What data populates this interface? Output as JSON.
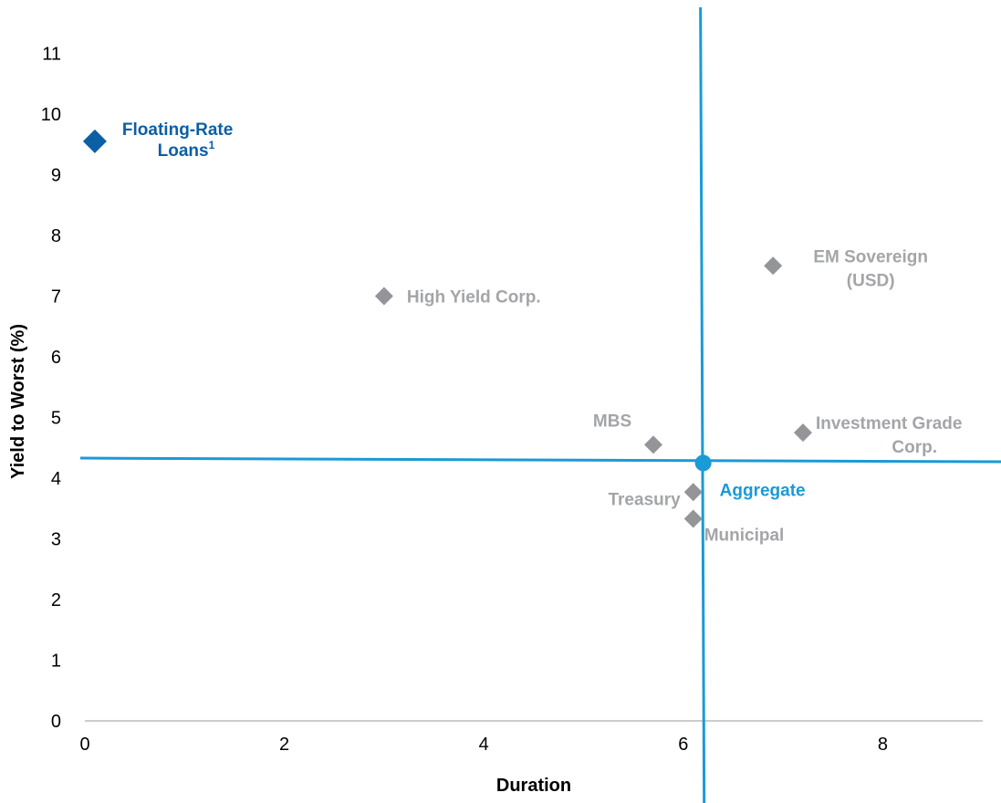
{
  "chart_data": {
    "type": "scatter",
    "xlabel": "Duration",
    "ylabel": "Yield to Worst (%)",
    "xlim": [
      0,
      9
    ],
    "ylim": [
      0,
      11
    ],
    "x_ticks": [
      "0",
      "2",
      "4",
      "6",
      "8"
    ],
    "y_ticks": [
      "0",
      "1",
      "2",
      "3",
      "4",
      "5",
      "6",
      "7",
      "8",
      "9",
      "10",
      "11"
    ],
    "grid": false,
    "reference_lines": {
      "x": 6.2,
      "y": 4.3,
      "color": "#1a9ad6"
    },
    "points": [
      {
        "label": "Floating-Rate Loans",
        "label_lines": [
          "Floating-Rate",
          "Loans"
        ],
        "footnote": "1",
        "x": 0.1,
        "y": 9.55,
        "marker": "diamond",
        "color": "#0b5fa5",
        "highlight": true
      },
      {
        "label": "High Yield Corp.",
        "label_lines": [
          "High Yield Corp."
        ],
        "x": 3.0,
        "y": 7.0,
        "marker": "diamond",
        "color": "#939598"
      },
      {
        "label": "EM Sovereign (USD)",
        "label_lines": [
          "EM Sovereign",
          "(USD)"
        ],
        "x": 6.9,
        "y": 7.5,
        "marker": "diamond",
        "color": "#939598"
      },
      {
        "label": "MBS",
        "label_lines": [
          "MBS"
        ],
        "x": 5.7,
        "y": 4.55,
        "marker": "diamond",
        "color": "#939598"
      },
      {
        "label": "Investment Grade Corp.",
        "label_lines": [
          "Investment Grade",
          "Corp."
        ],
        "x": 7.2,
        "y": 4.75,
        "marker": "diamond",
        "color": "#939598"
      },
      {
        "label": "Aggregate",
        "label_lines": [
          "Aggregate"
        ],
        "x": 6.2,
        "y": 4.25,
        "marker": "circle",
        "color": "#1a9ad6"
      },
      {
        "label": "Treasury",
        "label_lines": [
          "Treasury"
        ],
        "x": 6.1,
        "y": 3.77,
        "marker": "diamond",
        "color": "#939598"
      },
      {
        "label": "Municipal",
        "label_lines": [
          "Municipal"
        ],
        "x": 6.1,
        "y": 3.33,
        "marker": "diamond",
        "color": "#939598"
      }
    ]
  }
}
